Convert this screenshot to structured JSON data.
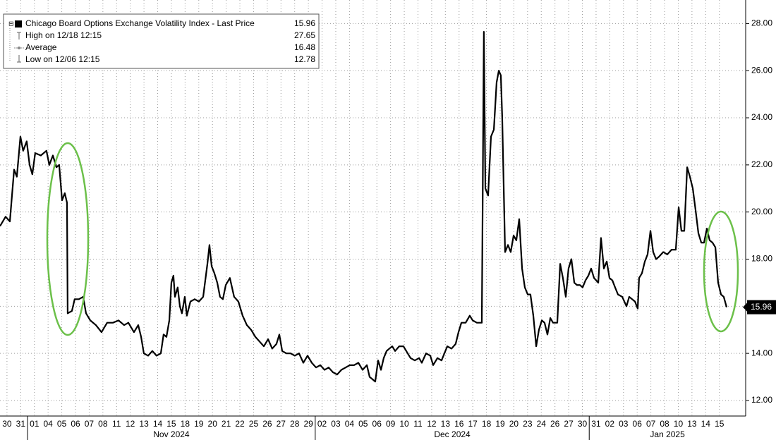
{
  "chart_data": {
    "type": "line",
    "legend": [
      {
        "label": "Chicago Board Options Exchange Volatility Index - Last Price",
        "value": 15.96
      },
      {
        "label": "High on 12/18 12:15",
        "value": 27.65
      },
      {
        "label": "Average",
        "value": 16.48
      },
      {
        "label": "Low on 12/06 12:15",
        "value": 12.78
      }
    ],
    "grid": true,
    "color": "#000000",
    "xlim": [
      -0.51,
      53.92
    ],
    "ylim": [
      11.34,
      29.0
    ],
    "yticks": [
      {
        "value": 12,
        "label": "12.00"
      },
      {
        "value": 14,
        "label": "14.00"
      },
      {
        "value": 16,
        "label": "16.00"
      },
      {
        "value": 18,
        "label": "18.00"
      },
      {
        "value": 20,
        "label": "20.00"
      },
      {
        "value": 22,
        "label": "22.00"
      },
      {
        "value": 24,
        "label": "24.00"
      },
      {
        "value": 26,
        "label": "26.00"
      },
      {
        "value": 28,
        "label": "28.00"
      }
    ],
    "xticks": [
      {
        "value": 0,
        "label": "30"
      },
      {
        "value": 1,
        "label": "31"
      },
      {
        "value": 2,
        "label": "01"
      },
      {
        "value": 3,
        "label": "04"
      },
      {
        "value": 4,
        "label": "05"
      },
      {
        "value": 5,
        "label": "06"
      },
      {
        "value": 6,
        "label": "07"
      },
      {
        "value": 7,
        "label": "08"
      },
      {
        "value": 8,
        "label": "11"
      },
      {
        "value": 9,
        "label": "12"
      },
      {
        "value": 10,
        "label": "13"
      },
      {
        "value": 11,
        "label": "14"
      },
      {
        "value": 12,
        "label": "15"
      },
      {
        "value": 13,
        "label": "18"
      },
      {
        "value": 14,
        "label": "19"
      },
      {
        "value": 15,
        "label": "20"
      },
      {
        "value": 16,
        "label": "21"
      },
      {
        "value": 17,
        "label": "22"
      },
      {
        "value": 18,
        "label": "25"
      },
      {
        "value": 19,
        "label": "26"
      },
      {
        "value": 20,
        "label": "27"
      },
      {
        "value": 21,
        "label": "28"
      },
      {
        "value": 22,
        "label": "29"
      },
      {
        "value": 23,
        "label": "02"
      },
      {
        "value": 24,
        "label": "03"
      },
      {
        "value": 25,
        "label": "04"
      },
      {
        "value": 26,
        "label": "05"
      },
      {
        "value": 27,
        "label": "06"
      },
      {
        "value": 28,
        "label": "09"
      },
      {
        "value": 29,
        "label": "10"
      },
      {
        "value": 30,
        "label": "11"
      },
      {
        "value": 31,
        "label": "12"
      },
      {
        "value": 32,
        "label": "13"
      },
      {
        "value": 33,
        "label": "16"
      },
      {
        "value": 34,
        "label": "17"
      },
      {
        "value": 35,
        "label": "18"
      },
      {
        "value": 36,
        "label": "19"
      },
      {
        "value": 37,
        "label": "20"
      },
      {
        "value": 38,
        "label": "23"
      },
      {
        "value": 39,
        "label": "24"
      },
      {
        "value": 40,
        "label": "26"
      },
      {
        "value": 41,
        "label": "27"
      },
      {
        "value": 42,
        "label": "30"
      },
      {
        "value": 43,
        "label": "31"
      },
      {
        "value": 44,
        "label": "02"
      },
      {
        "value": 45,
        "label": "03"
      },
      {
        "value": 46,
        "label": "06"
      },
      {
        "value": 47,
        "label": "07"
      },
      {
        "value": 48,
        "label": "08"
      },
      {
        "value": 49,
        "label": "10"
      },
      {
        "value": 50,
        "label": "13"
      },
      {
        "value": 51,
        "label": "14"
      },
      {
        "value": 52,
        "label": "15"
      }
    ],
    "month_ticks": [
      {
        "value": 1.5,
        "label": "Nov 2024"
      },
      {
        "value": 22.5,
        "label": "Dec 2024"
      },
      {
        "value": 42.5,
        "label": "Jan 2025"
      }
    ],
    "x": [
      -0.51,
      -0.1,
      0.21,
      0.52,
      0.72,
      0.98,
      1.18,
      1.44,
      1.65,
      1.85,
      2.06,
      2.47,
      2.88,
      3.09,
      3.35,
      3.61,
      3.81,
      4.02,
      4.22,
      4.38,
      4.43,
      4.74,
      4.94,
      5.25,
      5.56,
      5.77,
      6.08,
      6.49,
      6.9,
      7.31,
      7.73,
      8.14,
      8.55,
      8.86,
      9.27,
      9.58,
      9.79,
      9.99,
      10.3,
      10.61,
      10.92,
      11.23,
      11.43,
      11.64,
      11.85,
      12.0,
      12.15,
      12.26,
      12.46,
      12.62,
      12.77,
      12.98,
      13.13,
      13.39,
      13.7,
      14.01,
      14.32,
      14.63,
      14.78,
      14.94,
      15.14,
      15.35,
      15.55,
      15.76,
      15.97,
      16.27,
      16.58,
      16.89,
      17.2,
      17.51,
      17.82,
      18.13,
      18.44,
      18.75,
      19.06,
      19.36,
      19.67,
      19.88,
      20.09,
      20.39,
      20.7,
      21.01,
      21.32,
      21.63,
      21.94,
      22.25,
      22.56,
      22.87,
      23.18,
      23.48,
      23.79,
      24.1,
      24.41,
      24.72,
      25.03,
      25.34,
      25.65,
      25.96,
      26.27,
      26.47,
      26.68,
      26.88,
      27.09,
      27.3,
      27.5,
      27.71,
      27.91,
      28.12,
      28.33,
      28.63,
      28.94,
      29.25,
      29.46,
      29.77,
      30.08,
      30.28,
      30.59,
      30.9,
      31.11,
      31.42,
      31.72,
      31.93,
      32.14,
      32.45,
      32.75,
      32.96,
      33.17,
      33.48,
      33.78,
      33.99,
      34.3,
      34.51,
      34.66,
      34.81,
      34.92,
      35.12,
      35.33,
      35.54,
      35.74,
      35.9,
      36.05,
      36.15,
      36.36,
      36.57,
      36.77,
      36.98,
      37.18,
      37.39,
      37.6,
      37.8,
      38.01,
      38.21,
      38.42,
      38.63,
      38.83,
      39.04,
      39.24,
      39.45,
      39.66,
      39.86,
      40.17,
      40.38,
      40.58,
      40.79,
      40.99,
      41.2,
      41.41,
      41.61,
      41.82,
      42.02,
      42.23,
      42.44,
      42.64,
      42.85,
      43.16,
      43.36,
      43.57,
      43.78,
      43.98,
      44.19,
      44.39,
      44.6,
      44.91,
      45.22,
      45.42,
      45.63,
      45.84,
      46.04,
      46.14,
      46.35,
      46.56,
      46.76,
      46.97,
      47.17,
      47.38,
      47.59,
      47.9,
      48.2,
      48.51,
      48.82,
      49.03,
      49.23,
      49.44,
      49.65,
      49.85,
      50.06,
      50.26,
      50.47,
      50.68,
      50.88,
      51.09,
      51.29,
      51.5,
      51.71,
      51.91,
      52.12,
      52.32,
      52.53
    ],
    "values": [
      19.4,
      19.8,
      19.6,
      21.8,
      21.5,
      23.2,
      22.6,
      23.0,
      22.0,
      21.6,
      22.5,
      22.4,
      22.6,
      22.0,
      22.4,
      21.9,
      22.0,
      20.5,
      20.8,
      20.4,
      15.7,
      15.8,
      16.3,
      16.3,
      16.4,
      15.7,
      15.4,
      15.2,
      14.9,
      15.3,
      15.3,
      15.4,
      15.2,
      15.3,
      14.9,
      15.2,
      14.7,
      14.0,
      13.9,
      14.1,
      13.9,
      14.0,
      14.8,
      14.7,
      15.4,
      17.0,
      17.3,
      16.4,
      16.8,
      16.0,
      15.7,
      16.4,
      15.6,
      16.2,
      16.3,
      16.2,
      16.4,
      17.8,
      18.6,
      17.7,
      17.4,
      17.0,
      16.4,
      16.3,
      16.9,
      17.2,
      16.4,
      16.2,
      15.6,
      15.2,
      15.0,
      14.7,
      14.5,
      14.3,
      14.6,
      14.2,
      14.4,
      14.8,
      14.1,
      14.0,
      14.0,
      13.9,
      14.0,
      13.6,
      13.9,
      13.6,
      13.4,
      13.5,
      13.3,
      13.4,
      13.2,
      13.1,
      13.3,
      13.4,
      13.5,
      13.5,
      13.6,
      13.3,
      13.5,
      13.0,
      12.9,
      12.8,
      13.7,
      13.3,
      13.8,
      14.1,
      14.2,
      14.3,
      14.1,
      14.3,
      14.3,
      14.0,
      13.8,
      13.7,
      13.8,
      13.6,
      14.0,
      13.9,
      13.5,
      13.8,
      13.7,
      14.0,
      14.3,
      14.2,
      14.4,
      14.9,
      15.3,
      15.3,
      15.6,
      15.4,
      15.3,
      15.3,
      15.3,
      27.65,
      21.0,
      20.7,
      23.2,
      23.5,
      25.5,
      26.0,
      25.8,
      24.0,
      18.3,
      18.6,
      18.3,
      19.0,
      18.8,
      19.7,
      17.6,
      16.8,
      16.5,
      16.5,
      15.6,
      14.3,
      15.0,
      15.4,
      15.3,
      14.8,
      15.5,
      15.3,
      15.3,
      17.8,
      17.2,
      16.4,
      17.6,
      18.0,
      17.0,
      16.9,
      16.9,
      16.8,
      17.1,
      17.3,
      17.6,
      17.2,
      17.0,
      18.9,
      17.6,
      17.9,
      17.2,
      17.1,
      16.8,
      16.5,
      16.4,
      16.0,
      16.4,
      16.3,
      16.2,
      15.9,
      17.2,
      17.4,
      17.9,
      18.2,
      19.2,
      18.3,
      18.0,
      18.1,
      18.3,
      18.2,
      18.4,
      18.4,
      20.2,
      19.2,
      19.2,
      21.9,
      21.5,
      21.0,
      20.1,
      19.1,
      18.7,
      18.7,
      19.3,
      18.8,
      18.7,
      18.5,
      17.0,
      16.5,
      16.4,
      15.96
    ]
  }
}
